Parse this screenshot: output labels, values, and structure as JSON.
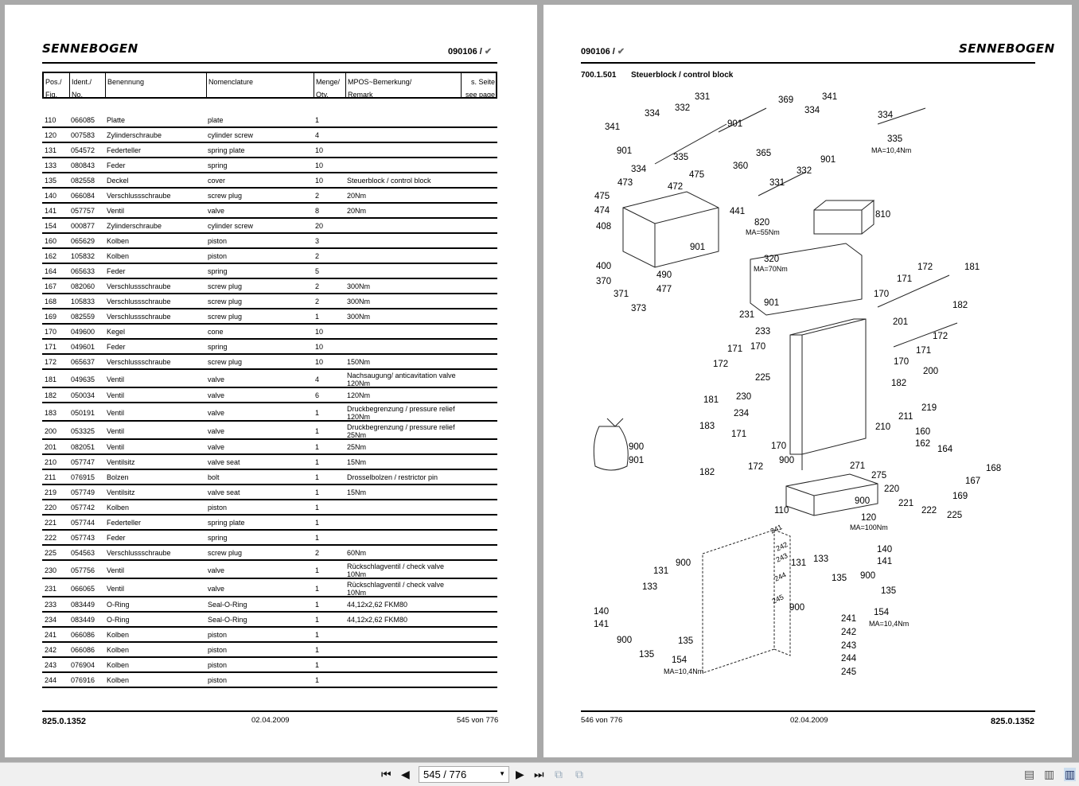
{
  "left_page": {
    "logo": "SENNEBOGEN",
    "code": "090106 /",
    "headers": [
      [
        "Pos./",
        "Fig."
      ],
      [
        "Ident./",
        "No."
      ],
      [
        "Benennung",
        ""
      ],
      [
        "Nomenclature",
        ""
      ],
      [
        "Menge/",
        "Qty."
      ],
      [
        "MPOS~Bemerkung/",
        "Remark"
      ],
      [
        "s. Seite",
        "see page"
      ]
    ],
    "rows": [
      [
        "110",
        "066085",
        "Platte",
        "plate",
        "1",
        ""
      ],
      [
        "120",
        "007583",
        "Zylinderschraube",
        "cylinder screw",
        "4",
        ""
      ],
      [
        "131",
        "054572",
        "Federteller",
        "spring plate",
        "10",
        ""
      ],
      [
        "133",
        "080843",
        "Feder",
        "spring",
        "10",
        ""
      ],
      [
        "135",
        "082558",
        "Deckel",
        "cover",
        "10",
        "Steuerblock / control block"
      ],
      [
        "140",
        "066084",
        "Verschlussschraube",
        "screw plug",
        "2",
        "20Nm"
      ],
      [
        "141",
        "057757",
        "Ventil",
        "valve",
        "8",
        "20Nm"
      ],
      [
        "154",
        "000877",
        "Zylinderschraube",
        "cylinder screw",
        "20",
        ""
      ],
      [
        "160",
        "065629",
        "Kolben",
        "piston",
        "3",
        ""
      ],
      [
        "162",
        "105832",
        "Kolben",
        "piston",
        "2",
        ""
      ],
      [
        "164",
        "065633",
        "Feder",
        "spring",
        "5",
        ""
      ],
      [
        "167",
        "082060",
        "Verschlussschraube",
        "screw plug",
        "2",
        "300Nm"
      ],
      [
        "168",
        "105833",
        "Verschlussschraube",
        "screw plug",
        "2",
        "300Nm"
      ],
      [
        "169",
        "082559",
        "Verschlussschraube",
        "screw plug",
        "1",
        "300Nm"
      ],
      [
        "170",
        "049600",
        "Kegel",
        "cone",
        "10",
        ""
      ],
      [
        "171",
        "049601",
        "Feder",
        "spring",
        "10",
        ""
      ],
      [
        "172",
        "065637",
        "Verschlussschraube",
        "screw plug",
        "10",
        "150Nm"
      ],
      [
        "181",
        "049635",
        "Ventil",
        "valve",
        "4",
        "Nachsaugung/ anticavitation valve\n120Nm"
      ],
      [
        "182",
        "050034",
        "Ventil",
        "valve",
        "6",
        "120Nm"
      ],
      [
        "183",
        "050191",
        "Ventil",
        "valve",
        "1",
        "Druckbegrenzung / pressure relief\n120Nm"
      ],
      [
        "200",
        "053325",
        "Ventil",
        "valve",
        "1",
        "Druckbegrenzung / pressure relief\n25Nm"
      ],
      [
        "201",
        "082051",
        "Ventil",
        "valve",
        "1",
        "25Nm"
      ],
      [
        "210",
        "057747",
        "Ventilsitz",
        "valve seat",
        "1",
        "15Nm"
      ],
      [
        "211",
        "076915",
        "Bolzen",
        "bolt",
        "1",
        "Drosselbolzen / restrictor pin"
      ],
      [
        "219",
        "057749",
        "Ventilsitz",
        "valve seat",
        "1",
        "15Nm"
      ],
      [
        "220",
        "057742",
        "Kolben",
        "piston",
        "1",
        ""
      ],
      [
        "221",
        "057744",
        "Federteller",
        "spring plate",
        "1",
        ""
      ],
      [
        "222",
        "057743",
        "Feder",
        "spring",
        "1",
        ""
      ],
      [
        "225",
        "054563",
        "Verschlussschraube",
        "screw plug",
        "2",
        "60Nm"
      ],
      [
        "230",
        "057756",
        "Ventil",
        "valve",
        "1",
        "Rückschlagventil / check valve\n10Nm"
      ],
      [
        "231",
        "066065",
        "Ventil",
        "valve",
        "1",
        "Rückschlagventil / check valve\n10Nm"
      ],
      [
        "233",
        "083449",
        "O-Ring",
        "Seal-O-Ring",
        "1",
        "44,12x2,62 FKM80"
      ],
      [
        "234",
        "083449",
        "O-Ring",
        "Seal-O-Ring",
        "1",
        "44,12x2,62 FKM80"
      ],
      [
        "241",
        "066086",
        "Kolben",
        "piston",
        "1",
        ""
      ],
      [
        "242",
        "066086",
        "Kolben",
        "piston",
        "1",
        ""
      ],
      [
        "243",
        "076904",
        "Kolben",
        "piston",
        "1",
        ""
      ],
      [
        "244",
        "076916",
        "Kolben",
        "piston",
        "1",
        ""
      ]
    ],
    "footer": {
      "doc": "825.0.1352",
      "date": "02.04.2009",
      "page": "545 von 776"
    }
  },
  "right_page": {
    "logo": "SENNEBOGEN",
    "code": "090106 /",
    "section_no": "700.1.501",
    "section_title": "Steuerblock / control block",
    "diagram_labels": [
      "331",
      "332",
      "334",
      "369",
      "341",
      "901",
      "901",
      "335",
      "334",
      "360",
      "365",
      "332",
      "901",
      "331",
      "475",
      "473",
      "472",
      "441",
      "475",
      "474",
      "408",
      "400",
      "370",
      "371",
      "373",
      "490",
      "477",
      "901",
      "341",
      "334",
      "334",
      "335",
      "MA=10,4Nm",
      "810",
      "820",
      "MA=55Nm",
      "320",
      "MA=70Nm",
      "172",
      "181",
      "171",
      "170",
      "182",
      "201",
      "172",
      "171",
      "170",
      "901",
      "231",
      "233",
      "171",
      "170",
      "172",
      "225",
      "181",
      "230",
      "234",
      "200",
      "182",
      "219",
      "211",
      "210",
      "183",
      "171",
      "170",
      "172",
      "182",
      "160",
      "162",
      "164",
      "900",
      "901",
      "900",
      "271",
      "275",
      "168",
      "167",
      "220",
      "221",
      "169",
      "222",
      "225",
      "900",
      "110",
      "120",
      "MA=100Nm",
      "140",
      "141",
      "900",
      "135",
      "154",
      "MA=10,4Nm",
      "133",
      "131",
      "135",
      "900",
      "241",
      "242",
      "243",
      "244",
      "245",
      "900",
      "131",
      "133",
      "140",
      "141",
      "900",
      "135",
      "135",
      "154",
      "MA=10,4Nm",
      "241",
      "242",
      "243",
      "244",
      "245"
    ],
    "footer": {
      "page": "546 von 776",
      "date": "02.04.2009",
      "doc": "825.0.1352"
    }
  },
  "toolbar": {
    "page_input": "545 / 776"
  }
}
